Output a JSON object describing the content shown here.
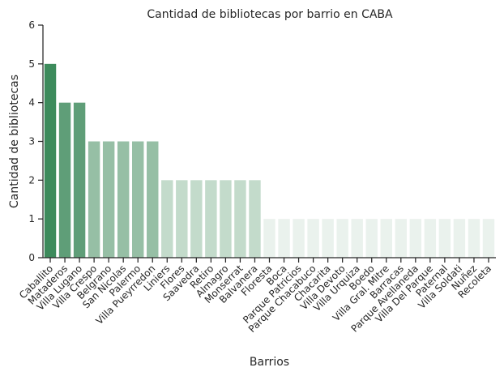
{
  "chart_data": {
    "type": "bar",
    "title": "Cantidad de bibliotecas por barrio en CABA",
    "xlabel": "Barrios",
    "ylabel": "Cantidad de bibliotecas",
    "ylim": [
      0,
      6
    ],
    "yticks": [
      "0",
      "1",
      "2",
      "3",
      "4",
      "5",
      "6"
    ],
    "grid": false,
    "categories": [
      "Caballito",
      "Mataderos",
      "Villa Lugano",
      "Villa Crespo",
      "Belgrano",
      "San Nicolas",
      "Palermo",
      "Villa Pueyrredon",
      "Liniers",
      "Flores",
      "Saavedra",
      "Retiro",
      "Almagro",
      "Monserrat",
      "Balvanera",
      "Floresta",
      "Boca",
      "Parque Patricios",
      "Parque Chacabuco",
      "Chacarita",
      "Villa Devoto",
      "Villa Urquiza",
      "Boedo",
      "Villa Gral. Mitre",
      "Barracas",
      "Parque Avellaneda",
      "Villa Del Parque",
      "Paternal",
      "Villa Soldati",
      "Nuñez",
      "Recoleta"
    ],
    "values": [
      5,
      4,
      4,
      3,
      3,
      3,
      3,
      3,
      2,
      2,
      2,
      2,
      2,
      2,
      2,
      1,
      1,
      1,
      1,
      1,
      1,
      1,
      1,
      1,
      1,
      1,
      1,
      1,
      1,
      1,
      1
    ],
    "colors_by_value": {
      "5": "#3d8b5c",
      "4": "#5f9e78",
      "3": "#96bfa5",
      "2": "#c3dbcb",
      "1": "#eaf2ed"
    }
  }
}
